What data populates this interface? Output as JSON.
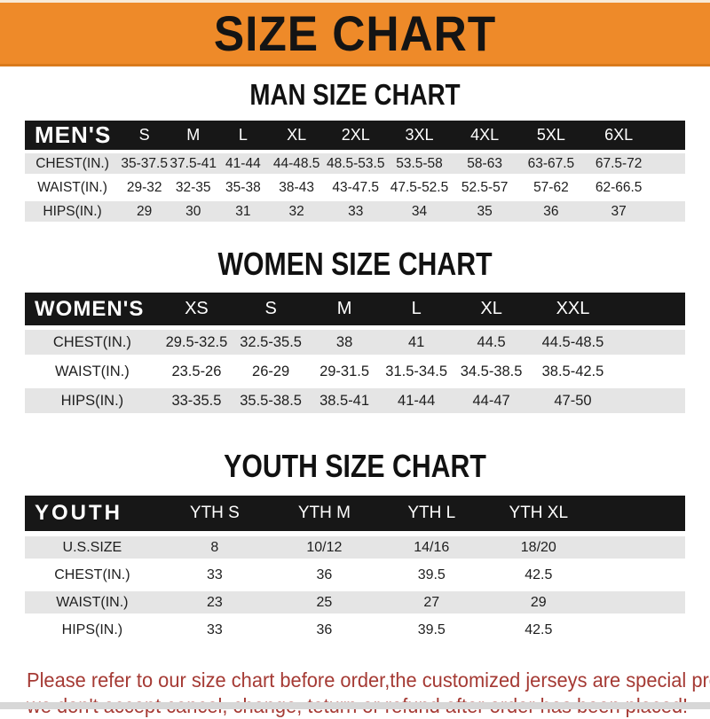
{
  "banner": {
    "title": "SIZE CHART"
  },
  "colors": {
    "banner_orange": "#ee8a29",
    "header_bar_black": "#171717",
    "stripe_gray": "#e5e5e5",
    "note_red": "#a53a34"
  },
  "sections": {
    "men": {
      "title": "MAN SIZE CHART"
    },
    "women": {
      "title": "WOMEN SIZE CHART"
    },
    "youth": {
      "title": "YOUTH SIZE CHART"
    }
  },
  "tables": {
    "men": {
      "header_label": "MEN'S",
      "columns": [
        "S",
        "M",
        "L",
        "XL",
        "2XL",
        "3XL",
        "4XL",
        "5XL",
        "6XL"
      ],
      "rows": [
        {
          "label": "CHEST(IN.)",
          "values": [
            "35-37.5",
            "37.5-41",
            "41-44",
            "44-48.5",
            "48.5-53.5",
            "53.5-58",
            "58-63",
            "63-67.5",
            "67.5-72"
          ]
        },
        {
          "label": "WAIST(IN.)",
          "values": [
            "29-32",
            "32-35",
            "35-38",
            "38-43",
            "43-47.5",
            "47.5-52.5",
            "52.5-57",
            "57-62",
            "62-66.5"
          ]
        },
        {
          "label": "HIPS(IN.)",
          "values": [
            "29",
            "30",
            "31",
            "32",
            "33",
            "34",
            "35",
            "36",
            "37"
          ]
        }
      ]
    },
    "women": {
      "header_label": "WOMEN'S",
      "columns": [
        "XS",
        "S",
        "M",
        "L",
        "XL",
        "XXL"
      ],
      "rows": [
        {
          "label": "CHEST(IN.)",
          "values": [
            "29.5-32.5",
            "32.5-35.5",
            "38",
            "41",
            "44.5",
            "44.5-48.5"
          ]
        },
        {
          "label": "WAIST(IN.)",
          "values": [
            "23.5-26",
            "26-29",
            "29-31.5",
            "31.5-34.5",
            "34.5-38.5",
            "38.5-42.5"
          ]
        },
        {
          "label": "HIPS(IN.)",
          "values": [
            "33-35.5",
            "35.5-38.5",
            "38.5-41",
            "41-44",
            "44-47",
            "47-50"
          ]
        }
      ]
    },
    "youth": {
      "header_label": "YOUTH",
      "columns": [
        "YTH S",
        "YTH M",
        "YTH L",
        "YTH XL"
      ],
      "rows": [
        {
          "label": "U.S.SIZE",
          "values": [
            "8",
            "10/12",
            "14/16",
            "18/20"
          ]
        },
        {
          "label": "CHEST(IN.)",
          "values": [
            "33",
            "36",
            "39.5",
            "42.5"
          ]
        },
        {
          "label": "WAIST(IN.)",
          "values": [
            "23",
            "25",
            "27",
            "29"
          ]
        },
        {
          "label": "HIPS(IN.)",
          "values": [
            "33",
            "36",
            "39.5",
            "42.5"
          ]
        }
      ]
    }
  },
  "note": {
    "lines": [
      "Please refer to our size chart before order,the customized jerseys are special products,",
      "we don't accept cancel, change, teturn or refund after order has been placed!"
    ]
  }
}
